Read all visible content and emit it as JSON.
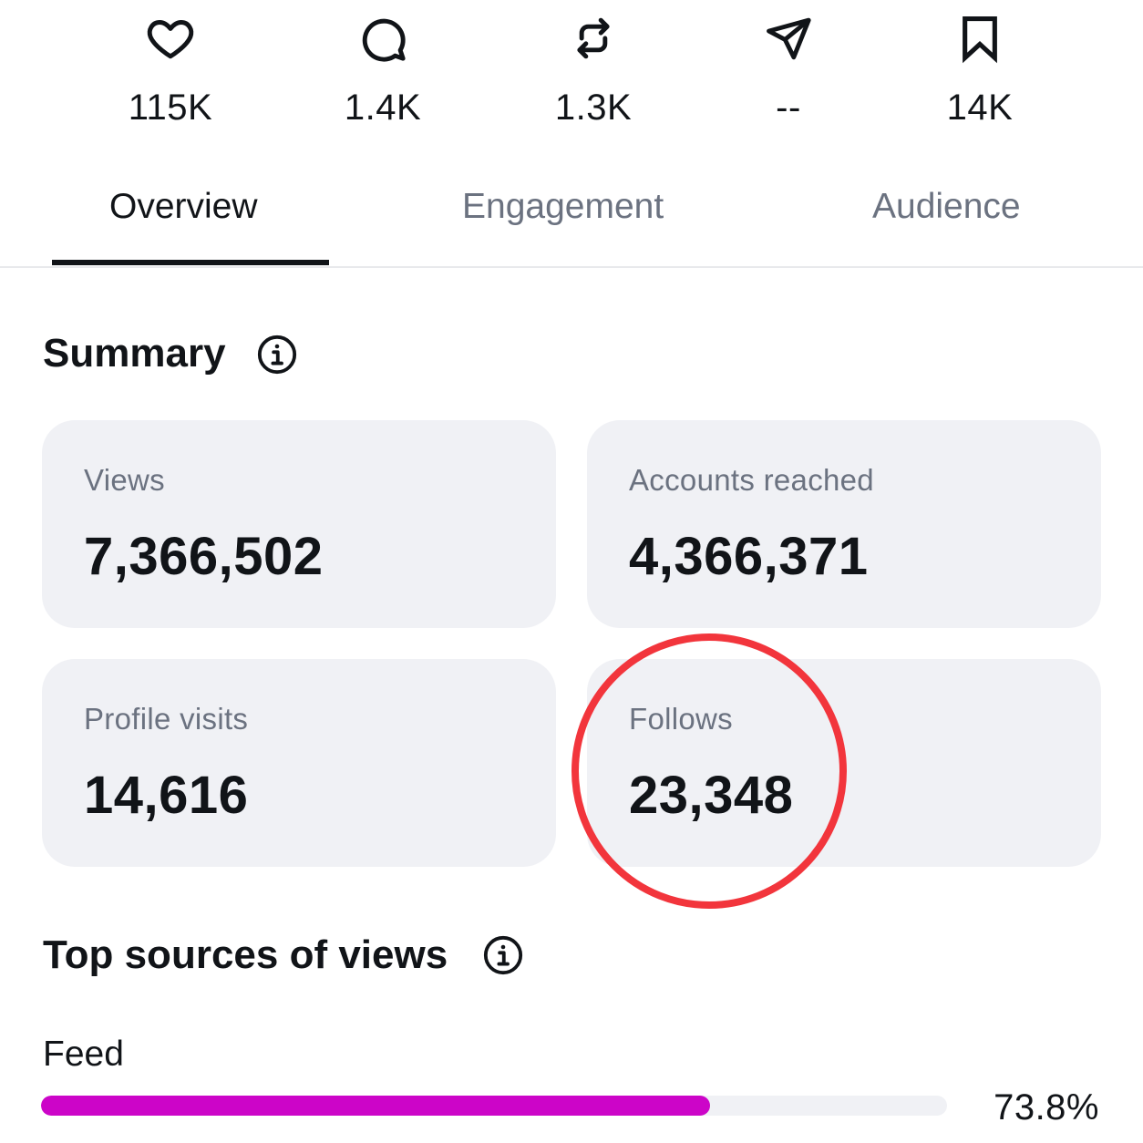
{
  "stats": [
    {
      "icon": "heart-icon",
      "count": "115K"
    },
    {
      "icon": "comment-icon",
      "count": "1.4K"
    },
    {
      "icon": "repost-icon",
      "count": "1.3K"
    },
    {
      "icon": "share-icon",
      "count": "--"
    },
    {
      "icon": "bookmark-icon",
      "count": "14K"
    }
  ],
  "tabs": [
    {
      "label": "Overview",
      "active": true
    },
    {
      "label": "Engagement",
      "active": false
    },
    {
      "label": "Audience",
      "active": false
    }
  ],
  "summary": {
    "title": "Summary",
    "cards": [
      {
        "label": "Views",
        "value": "7,366,502"
      },
      {
        "label": "Accounts reached",
        "value": "4,366,371"
      },
      {
        "label": "Profile visits",
        "value": "14,616"
      },
      {
        "label": "Follows",
        "value": "23,348"
      }
    ]
  },
  "top_sources": {
    "title": "Top sources of views",
    "items": [
      {
        "label": "Feed",
        "percent": "73.8%",
        "fraction": 0.738
      }
    ]
  },
  "colors": {
    "bar_fill": "#cc05c8",
    "annotation": "#f2353c",
    "card_bg": "#f0f1f5"
  }
}
